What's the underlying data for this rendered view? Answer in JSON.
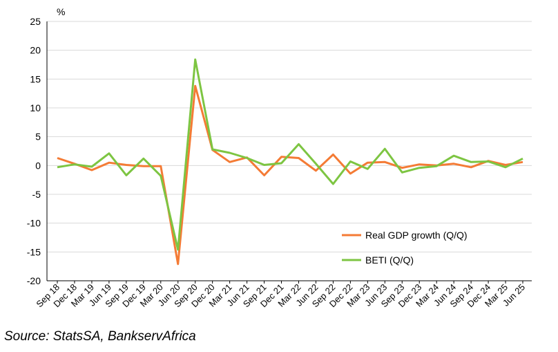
{
  "chart_data": {
    "type": "line",
    "ylabel": "%",
    "ylim": [
      -20,
      25
    ],
    "yticks": [
      25,
      20,
      15,
      10,
      5,
      0,
      -5,
      -10,
      -15,
      -20
    ],
    "grid": "horizontal",
    "legend_position": "bottom-right",
    "categories": [
      "Sep 18",
      "Dec 18",
      "Mar 19",
      "Jun 19",
      "Sep 19",
      "Dec 19",
      "Mar 20",
      "Jun 20",
      "Sep 20",
      "Dec 20",
      "Mar 21",
      "Jun 21",
      "Sep 21",
      "Dec 21",
      "Mar 22",
      "Jun 22",
      "Sep 22",
      "Dec 22",
      "Mar 23",
      "Jun 23",
      "Sep 23",
      "Dec 23",
      "Mar 24",
      "Jun 24",
      "Sep 24",
      "Dec 24",
      "Mar 25",
      "Jun 25"
    ],
    "x": [
      "Sep 18",
      "Dec 18",
      "Mar 19",
      "Jun 19",
      "Sep 19",
      "Dec 19",
      "Mar 20",
      "Jun 20",
      "Sep 20",
      "Dec 20",
      "Mar 21",
      "Jun 21",
      "Sep 21",
      "Dec 21",
      "Mar 22",
      "Jun 22",
      "Sep 22",
      "Dec 22",
      "Mar 23",
      "Jun 23",
      "Sep 23",
      "Dec 23",
      "Mar 24",
      "Jun 24",
      "Sep 24",
      "Dec 24",
      "Mar 25",
      "Jun 25"
    ],
    "series": [
      {
        "name": "Real GDP growth (Q/Q)",
        "color": "#F47B35",
        "values": [
          1.3,
          0.3,
          -0.8,
          0.5,
          0.1,
          -0.1,
          -0.1,
          -17.1,
          13.8,
          2.7,
          0.6,
          1.4,
          -1.7,
          1.5,
          1.3,
          -0.9,
          1.9,
          -1.4,
          0.5,
          0.6,
          -0.4,
          0.2,
          0.0,
          0.3,
          -0.3,
          0.8,
          0.1,
          0.6
        ]
      },
      {
        "name": "BETI (Q/Q)",
        "color": "#7DC542",
        "values": [
          -0.3,
          0.2,
          -0.2,
          2.1,
          -1.7,
          1.2,
          -1.8,
          -14.6,
          18.4,
          2.8,
          2.2,
          1.3,
          0.1,
          0.4,
          3.7,
          0.3,
          -3.2,
          0.7,
          -0.6,
          2.9,
          -1.2,
          -0.4,
          -0.1,
          1.7,
          0.6,
          0.7,
          -0.3,
          1.2
        ]
      }
    ]
  },
  "source": "Source: StatsSA, BankservAfrica"
}
